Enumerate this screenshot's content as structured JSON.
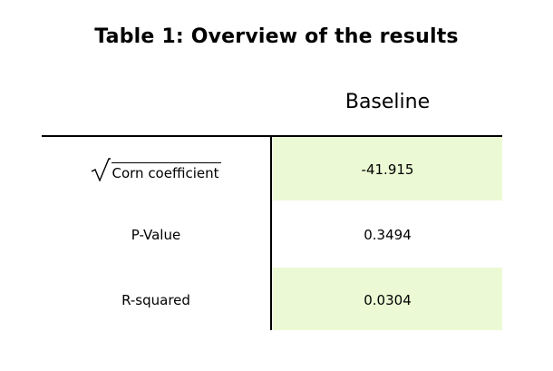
{
  "table": {
    "title": "Table 1: Overview of the results",
    "column_header": "Baseline",
    "rows": [
      {
        "label": "Corn coefficient",
        "label_prefix_symbol": "square-root",
        "value": "-41.915",
        "shaded": true
      },
      {
        "label": "P-Value",
        "value": "0.3494",
        "shaded": false
      },
      {
        "label": "R-squared",
        "value": "0.0304",
        "shaded": true
      }
    ]
  },
  "colors": {
    "shaded_cell": "#ebfad4",
    "rule": "#000000",
    "text": "#000000"
  }
}
